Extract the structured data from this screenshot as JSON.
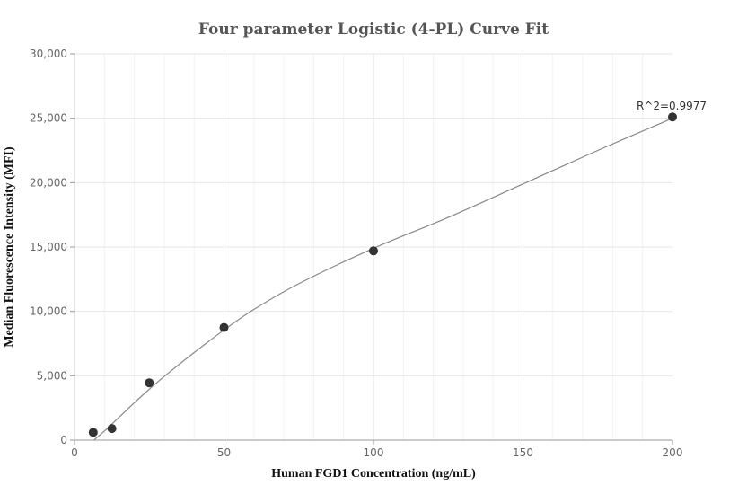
{
  "chart_data": {
    "type": "scatter",
    "title": "Four parameter Logistic (4-PL) Curve Fit",
    "xlabel": "Human FGD1 Concentration (ng/mL)",
    "ylabel": "Median Fluorescence Intensity (MFI)",
    "xlim": [
      0,
      200
    ],
    "ylim": [
      0,
      30000
    ],
    "x_ticks": [
      0,
      50,
      100,
      150,
      200
    ],
    "x_tick_labels": [
      "0",
      "50",
      "100",
      "150",
      "200"
    ],
    "y_ticks": [
      0,
      5000,
      10000,
      15000,
      20000,
      25000,
      30000
    ],
    "y_tick_labels": [
      "0",
      "5,000",
      "10,000",
      "15,000",
      "20,000",
      "25,000",
      "30,000"
    ],
    "grid": true,
    "points": [
      {
        "x": 6.25,
        "y": 600
      },
      {
        "x": 12.5,
        "y": 900
      },
      {
        "x": 25,
        "y": 4450
      },
      {
        "x": 50,
        "y": 8750
      },
      {
        "x": 100,
        "y": 14700
      },
      {
        "x": 200,
        "y": 25100
      }
    ],
    "fit_curve": [
      {
        "x": 6.5,
        "y": 0
      },
      {
        "x": 10,
        "y": 700
      },
      {
        "x": 15,
        "y": 1800
      },
      {
        "x": 20,
        "y": 2900
      },
      {
        "x": 25,
        "y": 3950
      },
      {
        "x": 30,
        "y": 4950
      },
      {
        "x": 40,
        "y": 6800
      },
      {
        "x": 50,
        "y": 8550
      },
      {
        "x": 60,
        "y": 10150
      },
      {
        "x": 75,
        "y": 12150
      },
      {
        "x": 100,
        "y": 14900
      },
      {
        "x": 125,
        "y": 17300
      },
      {
        "x": 150,
        "y": 19900
      },
      {
        "x": 175,
        "y": 22500
      },
      {
        "x": 200,
        "y": 25000
      }
    ],
    "annotation": {
      "text": "R^2=0.9977",
      "x": 200,
      "y": 25100
    },
    "colors": {
      "points": "#333333",
      "curve": "#888888",
      "grid": "#e8e8e8",
      "axis": "#cccccc"
    }
  }
}
